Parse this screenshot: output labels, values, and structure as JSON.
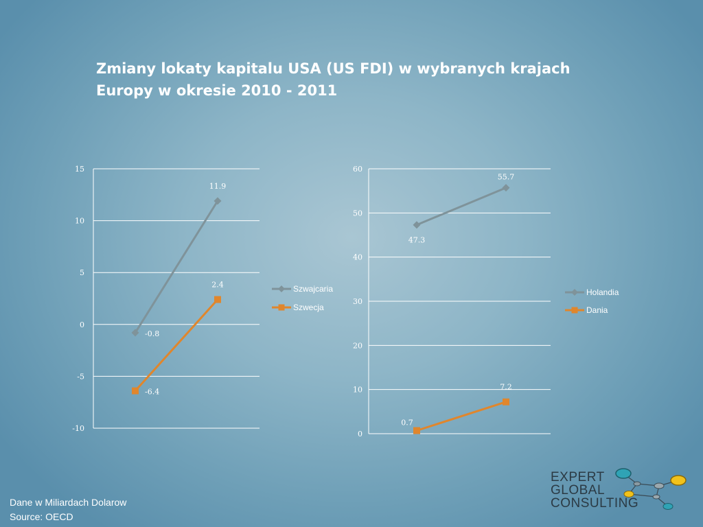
{
  "title": {
    "line1": "Zmiany lokaty kapitalu USA (US FDI) w wybranych krajach",
    "line2": "Europy w okresie 2010 - 2011"
  },
  "chart_data": [
    {
      "type": "line",
      "ylim": [
        -10,
        15
      ],
      "yticks": [
        -10,
        -5,
        0,
        5,
        10,
        15
      ],
      "grid": true,
      "legend_position": "right",
      "series": [
        {
          "name": "Szwajcaria",
          "values": [
            -0.8,
            11.9
          ],
          "labels": [
            "-0.8",
            "11.9"
          ],
          "color": "#7f939a",
          "marker": "diamond"
        },
        {
          "name": "Szwecja",
          "values": [
            -6.4,
            2.4
          ],
          "labels": [
            "-6.4",
            "2.4"
          ],
          "color": "#e0862c",
          "marker": "square"
        }
      ]
    },
    {
      "type": "line",
      "ylim": [
        0,
        60
      ],
      "yticks": [
        0,
        10,
        20,
        30,
        40,
        50,
        60
      ],
      "grid": true,
      "legend_position": "right",
      "series": [
        {
          "name": "Holandia",
          "values": [
            47.3,
            55.7
          ],
          "labels": [
            "47.3",
            "55.7"
          ],
          "color": "#7f939a",
          "marker": "diamond"
        },
        {
          "name": "Dania",
          "values": [
            0.7,
            7.2
          ],
          "labels": [
            "0.7",
            "7.2"
          ],
          "color": "#e0862c",
          "marker": "square"
        }
      ]
    }
  ],
  "footer": {
    "note": "Dane w Miliardach Dolarow",
    "source": "Source:  OECD"
  },
  "logo": {
    "line1": "EXPERT",
    "line2": "GLOBAL",
    "line3": "CONSULTING"
  }
}
